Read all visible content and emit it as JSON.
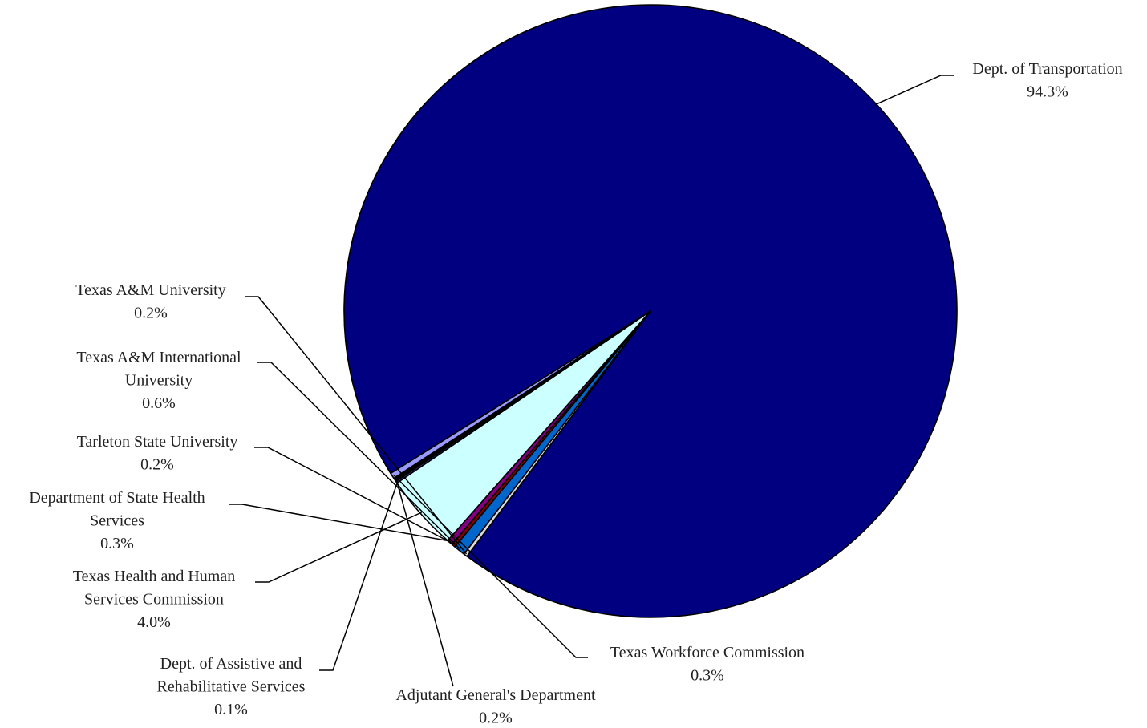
{
  "chart_data": {
    "type": "pie",
    "title": "",
    "slices": [
      {
        "label": "Dept. of Transportation",
        "label_lines": [
          "Dept. of Transportation"
        ],
        "percent_label": "94.3%",
        "value": 94.3,
        "color": "#000080"
      },
      {
        "label": "Texas A&M University",
        "label_lines": [
          "Texas A&M University"
        ],
        "percent_label": "0.2%",
        "value": 0.2,
        "color": "#DCDCDC"
      },
      {
        "label": "Texas A&M International University",
        "label_lines": [
          "Texas A&M International",
          "University"
        ],
        "percent_label": "0.6%",
        "value": 0.6,
        "color": "#0066CC"
      },
      {
        "label": "Tarleton State University",
        "label_lines": [
          "Tarleton State University"
        ],
        "percent_label": "0.2%",
        "value": 0.2,
        "color": "#800000"
      },
      {
        "label": "Department of State Health Services",
        "label_lines": [
          "Department of State Health",
          "Services"
        ],
        "percent_label": "0.3%",
        "value": 0.3,
        "color": "#800080"
      },
      {
        "label": "Texas Health and Human Services Commission",
        "label_lines": [
          "Texas Health and Human",
          "Services Commission"
        ],
        "percent_label": "4.0%",
        "value": 4.0,
        "color": "#CCFFFF"
      },
      {
        "label": "Dept. of Assistive and Rehabilitative Services",
        "label_lines": [
          "Dept. of Assistive and",
          "Rehabilitative Services"
        ],
        "percent_label": "0.1%",
        "value": 0.1,
        "color": "#333399"
      },
      {
        "label": "Adjutant General's Department",
        "label_lines": [
          "Adjutant General's Department"
        ],
        "percent_label": "0.2%",
        "value": 0.2,
        "color": "#000000"
      },
      {
        "label": "Texas Workforce Commission",
        "label_lines": [
          "Texas Workforce Commission"
        ],
        "percent_label": "0.3%",
        "value": 0.3,
        "color": "#9999FF"
      }
    ]
  }
}
